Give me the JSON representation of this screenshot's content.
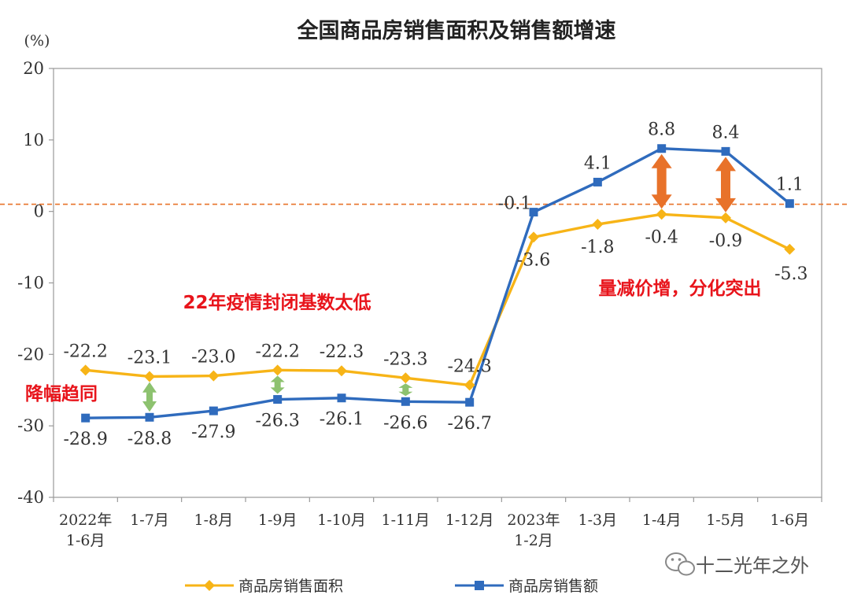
{
  "chart_data": {
    "type": "line",
    "title": "全国商品房销售面积及销售额增速",
    "ylabel": "(%)",
    "ylim": [
      -40,
      20
    ],
    "yticks": [
      20,
      10,
      0,
      -10,
      -20,
      -30,
      -40
    ],
    "categories": [
      [
        "2022年",
        "1-6月"
      ],
      [
        "1-7月"
      ],
      [
        "1-8月"
      ],
      [
        "1-9月"
      ],
      [
        "1-10月"
      ],
      [
        "1-11月"
      ],
      [
        "1-12月"
      ],
      [
        "2023年",
        "1-2月"
      ],
      [
        "1-3月"
      ],
      [
        "1-4月"
      ],
      [
        "1-5月"
      ],
      [
        "1-6月"
      ]
    ],
    "series": [
      {
        "name": "商品房销售面积",
        "color": "#f7b417",
        "marker": "diamond",
        "values": [
          -22.2,
          -23.1,
          -23.0,
          -22.2,
          -22.3,
          -23.3,
          -24.3,
          -3.6,
          -1.8,
          -0.4,
          -0.9,
          -5.3
        ],
        "labels": [
          "-22.2",
          "-23.1",
          "-23.0",
          "-22.2",
          "-22.3",
          "-23.3",
          "-24.3",
          "-3.6",
          "-1.8",
          "-0.4",
          "-0.9",
          "-5.3"
        ]
      },
      {
        "name": "商品房销售额",
        "color": "#2f6bbd",
        "marker": "square",
        "values": [
          -28.9,
          -28.8,
          -27.9,
          -26.3,
          -26.1,
          -26.6,
          -26.7,
          -0.1,
          4.1,
          8.8,
          8.4,
          1.1
        ],
        "labels": [
          "-28.9",
          "-28.8",
          "-27.9",
          "-26.3",
          "-26.1",
          "-26.6",
          "-26.7",
          "-0.1",
          "4.1",
          "8.8",
          "8.4",
          "1.1"
        ]
      }
    ],
    "reference_line": {
      "y": 1.0,
      "color": "#e8722a",
      "style": "dashed"
    },
    "annotations": [
      {
        "text": "22年疫情封闭基数太低",
        "color": "#e8141b"
      },
      {
        "text": "降幅趋同",
        "color": "#e8141b"
      },
      {
        "text": "量减价增，分化突出",
        "color": "#e8141b"
      }
    ],
    "gap_arrows": [
      {
        "category_index": 1,
        "color": "#8dc26f"
      },
      {
        "category_index": 3,
        "color": "#8dc26f"
      },
      {
        "category_index": 5,
        "color": "#8dc26f"
      },
      {
        "category_index": 9,
        "color": "#e8722a"
      },
      {
        "category_index": 10,
        "color": "#e8722a"
      }
    ],
    "legend": "bottom",
    "grid": false
  },
  "watermark": "十二光年之外",
  "watermark_icon": "wechat-icon"
}
